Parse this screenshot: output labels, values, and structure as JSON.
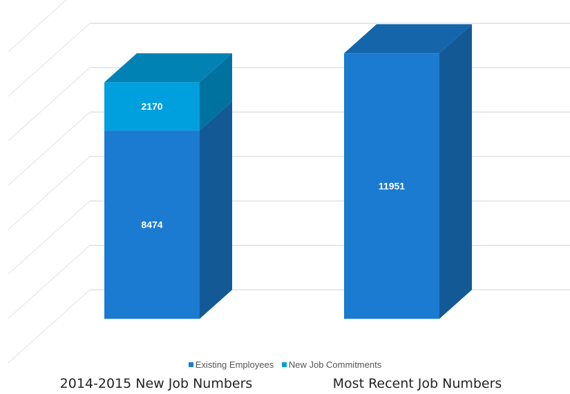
{
  "chart_data": {
    "type": "bar",
    "subtype": "stacked-3d",
    "categories": [
      "2014-2015 New Job Numbers",
      "Most Recent Job Numbers"
    ],
    "series": [
      {
        "name": "Existing Employees",
        "values": [
          8474,
          11951
        ],
        "color": "#1a7bd0"
      },
      {
        "name": "New Job Commitments",
        "values": [
          2170,
          0
        ],
        "color": "#009fdd"
      }
    ],
    "ylim": [
      0,
      14000
    ],
    "grid": true,
    "legend_position": "bottom"
  }
}
